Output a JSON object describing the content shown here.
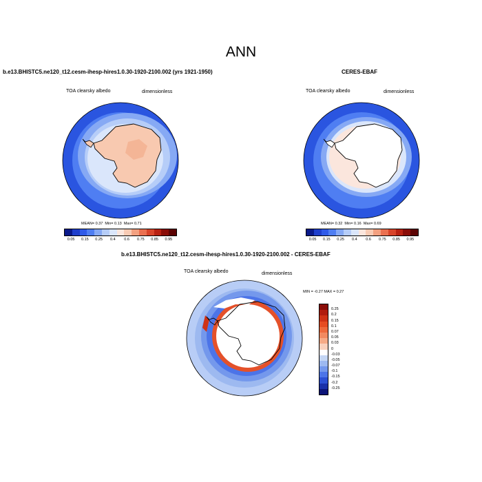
{
  "main_title": "ANN",
  "panels": [
    {
      "title": "b.e13.BHISTC5.ne120_t12.cesm-ihesp-hires1.0.30-1920-2100.002 (yrs 1921-1950)",
      "variable": "TOA clearsky albedo",
      "units": "dimensionless",
      "stats": {
        "mean_label": "MEAN=",
        "mean": "0.37",
        "min_label": "Min=",
        "min": "0.13",
        "max_label": "Max=",
        "max": "0.71"
      },
      "colorbar": {
        "labels": [
          "0.05",
          "0.15",
          "0.25",
          "0.4",
          "0.6",
          "0.75",
          "0.85",
          "0.95"
        ],
        "colors": [
          "#0a1a8a",
          "#1f3fcc",
          "#2f5ae8",
          "#4f7ef2",
          "#86a9f4",
          "#b6cdf8",
          "#dae6fb",
          "#fbe6dd",
          "#f8cbb4",
          "#f2a080",
          "#ea7050",
          "#d8442a",
          "#b82112",
          "#8a0d08",
          "#5c0404"
        ]
      }
    },
    {
      "title": "CERES-EBAF",
      "variable": "TOA clearsky albedo",
      "units": "dimensionless",
      "stats": {
        "mean_label": "MEAN=",
        "mean": "0.32",
        "min_label": "Min=",
        "min": "0.16",
        "max_label": "Max=",
        "max": "0.69"
      },
      "colorbar": {
        "labels": [
          "0.05",
          "0.15",
          "0.25",
          "0.4",
          "0.6",
          "0.75",
          "0.85",
          "0.95"
        ],
        "colors": [
          "#0a1a8a",
          "#1f3fcc",
          "#2f5ae8",
          "#4f7ef2",
          "#86a9f4",
          "#b6cdf8",
          "#dae6fb",
          "#fbe6dd",
          "#f8cbb4",
          "#f2a080",
          "#ea7050",
          "#d8442a",
          "#b82112",
          "#8a0d08",
          "#5c0404"
        ]
      }
    },
    {
      "title": "b.e13.BHISTC5.ne120_t12.cesm-ihesp-hires1.0.30-1920-2100.002 - CERES-EBAF",
      "variable": "TOA clearsky albedo",
      "units": "dimensionless",
      "minmax": "MIN =  -0.27 MAX =   0.27",
      "colorbar": {
        "labels": [
          "0.25",
          "0.2",
          "0.15",
          "0.1",
          "0.07",
          "0.05",
          "0.03",
          "0",
          "-0.03",
          "-0.05",
          "-0.07",
          "-0.1",
          "-0.15",
          "-0.2",
          "-0.25"
        ],
        "colors": [
          "#8a0d08",
          "#b01c0e",
          "#cf3216",
          "#e64c22",
          "#ee6a3c",
          "#f28a60",
          "#f6aa86",
          "#fad0bc",
          "#ffffff",
          "#c4d6f4",
          "#9db9f0",
          "#7498ec",
          "#4c74e8",
          "#2c50d4",
          "#1a30a8",
          "#0c1478"
        ]
      }
    }
  ],
  "palette": {
    "ocean_deep": "#2a55e0",
    "ocean_mid": "#5a85ef",
    "ocean_light": "#a9c3f5",
    "ice_light": "#dbe7fb",
    "land_model": "#f8c9b0",
    "land_obs": "#ffffff",
    "diff_bg": "#b8cdf6",
    "diff_pos": "#e4512a"
  }
}
